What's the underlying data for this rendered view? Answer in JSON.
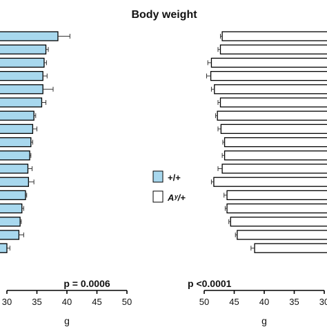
{
  "chart_data": [
    {
      "type": "bar",
      "orientation": "horizontal",
      "title": "Body weight",
      "xlabel": "g",
      "xlim": [
        30,
        50
      ],
      "xticks": [
        "30",
        "35",
        "40",
        "45",
        "50"
      ],
      "annotation": "p = 0.0006",
      "series": [
        {
          "name": "+/+",
          "color": "#a8d8ee",
          "values": [
            38.5,
            36.5,
            36.2,
            36.0,
            36.0,
            35.8,
            34.5,
            34.3,
            34.0,
            33.8,
            33.5,
            33.6,
            33.1,
            32.5,
            32.2,
            32.0,
            30.0
          ],
          "errors": [
            2.0,
            0.4,
            0.4,
            0.7,
            1.7,
            0.7,
            0.3,
            0.7,
            0.3,
            0.2,
            0.7,
            0.9,
            0.2,
            0.3,
            0.2,
            0.8,
            0.5
          ]
        }
      ]
    },
    {
      "type": "bar",
      "orientation": "horizontal",
      "xlabel": "g",
      "xlim": [
        50,
        30
      ],
      "x_reversed": true,
      "xticks": [
        "50",
        "45",
        "40",
        "35",
        "30"
      ],
      "annotation": "p <0.0001",
      "series": [
        {
          "name": "Aʸ/+",
          "color": "#ffffff",
          "values": [
            47.0,
            47.3,
            48.8,
            48.9,
            48.3,
            47.3,
            47.8,
            47.2,
            46.6,
            46.6,
            47.0,
            48.4,
            46.2,
            46.2,
            45.6,
            44.5,
            41.6
          ],
          "errors": [
            0.3,
            0.4,
            0.6,
            0.7,
            0.5,
            0.4,
            0.3,
            0.5,
            0.3,
            0.4,
            0.7,
            0.4,
            0.5,
            0.3,
            0.3,
            0.3,
            0.6
          ]
        }
      ]
    }
  ],
  "legend": {
    "items": [
      {
        "label": "+/+",
        "color": "#a8d8ee"
      },
      {
        "label": "Aʸ/+",
        "color": "#ffffff"
      }
    ]
  }
}
